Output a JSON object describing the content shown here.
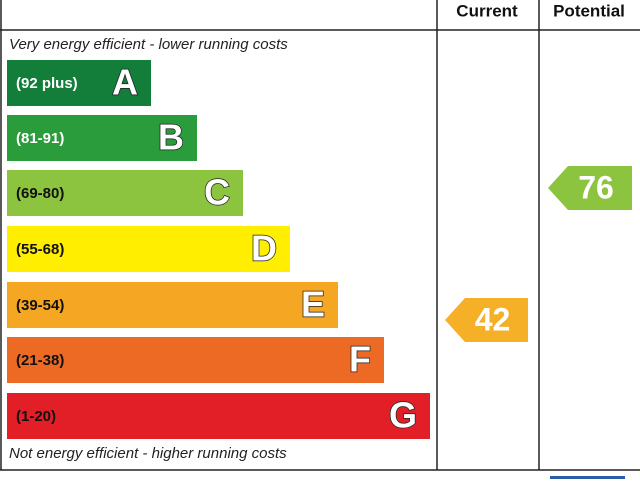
{
  "header": {
    "current": "Current",
    "potential": "Potential"
  },
  "top_note": "Very energy efficient - lower running costs",
  "bottom_note": "Not energy efficient - higher running costs",
  "bands": [
    {
      "range": "(92 plus)",
      "letter": "A",
      "color": "#127e3a"
    },
    {
      "range": "(81-91)",
      "letter": "B",
      "color": "#2a9c3c"
    },
    {
      "range": "(69-80)",
      "letter": "C",
      "color": "#8cc43f"
    },
    {
      "range": "(55-68)",
      "letter": "D",
      "color": "#ffee00"
    },
    {
      "range": "(39-54)",
      "letter": "E",
      "color": "#f5a623"
    },
    {
      "range": "(21-38)",
      "letter": "F",
      "color": "#ec6a24"
    },
    {
      "range": "(1-20)",
      "letter": "G",
      "color": "#e21f26"
    }
  ],
  "current": {
    "value": "42",
    "color": "#f5b027"
  },
  "potential": {
    "value": "76",
    "color": "#8cc43f"
  }
}
